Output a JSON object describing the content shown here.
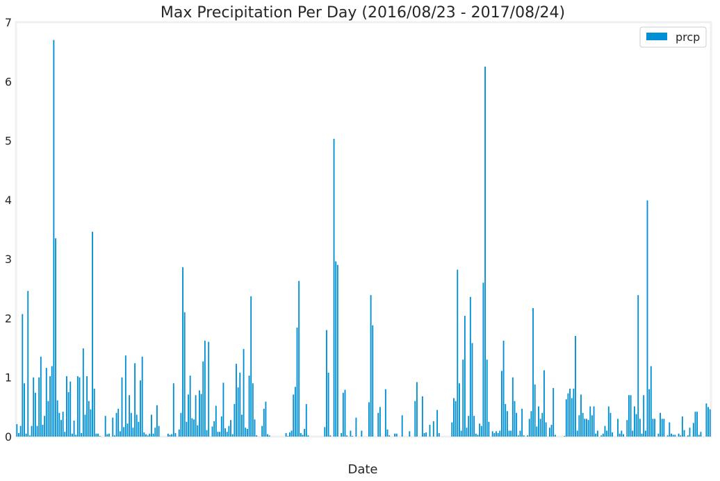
{
  "chart_data": {
    "type": "bar",
    "title": "Max Precipitation Per Day (2016/08/23 - 2017/08/24)",
    "xlabel": "Date",
    "ylabel": "",
    "ylim": [
      0,
      7
    ],
    "yticks": [
      "0",
      "1",
      "2",
      "3",
      "4",
      "5",
      "6",
      "7"
    ],
    "grid": false,
    "legend_position": "top-right",
    "bar_color": "#008fd5",
    "series": [
      {
        "name": "prcp",
        "values": [
          0.21,
          0.06,
          0.18,
          2.07,
          0.9,
          0.05,
          2.46,
          0.02,
          0.18,
          1.0,
          0.74,
          0.18,
          1.0,
          1.35,
          0.2,
          0.35,
          1.16,
          0.6,
          1.02,
          1.19,
          6.7,
          3.35,
          0.61,
          0.4,
          0.28,
          0.42,
          0.08,
          1.02,
          0.75,
          0.93,
          0.05,
          0.27,
          0.03,
          1.02,
          1.0,
          0.06,
          1.49,
          0.37,
          1.02,
          0.6,
          0.46,
          3.46,
          0.81,
          0.05,
          0.05,
          0.01,
          0.0,
          0.0,
          0.35,
          0.04,
          0.05,
          0.0,
          0.32,
          0.02,
          0.4,
          0.47,
          0.09,
          1.0,
          0.16,
          1.37,
          0.22,
          0.7,
          0.4,
          0.15,
          1.24,
          0.37,
          0.25,
          0.95,
          1.35,
          0.07,
          0.04,
          0.02,
          0.05,
          0.37,
          0.05,
          0.15,
          0.53,
          0.18,
          0.0,
          0.0,
          0.0,
          0.0,
          0.05,
          0.03,
          0.04,
          0.9,
          0.06,
          0.0,
          0.12,
          0.4,
          2.86,
          2.1,
          0.25,
          0.71,
          1.03,
          0.31,
          0.29,
          0.7,
          0.19,
          0.78,
          0.72,
          1.27,
          1.62,
          0.11,
          1.6,
          0.0,
          0.17,
          0.26,
          0.52,
          0.08,
          0.08,
          0.34,
          0.91,
          0.14,
          0.08,
          0.18,
          0.28,
          0.04,
          0.55,
          1.23,
          0.83,
          1.08,
          0.37,
          1.48,
          0.15,
          0.13,
          1.03,
          2.37,
          0.9,
          0.29,
          0.02,
          0.0,
          0.0,
          0.18,
          0.47,
          0.59,
          0.04,
          0.02,
          0.0,
          0.0,
          0.0,
          0.0,
          0.0,
          0.0,
          0.0,
          0.0,
          0.06,
          0.01,
          0.07,
          0.1,
          0.71,
          0.84,
          1.84,
          2.63,
          0.06,
          0.03,
          0.13,
          0.55,
          0.02,
          0.0,
          0.0,
          0.0,
          0.0,
          0.0,
          0.0,
          0.0,
          0.0,
          0.16,
          1.8,
          1.08,
          0.02,
          0.0,
          5.03,
          2.96,
          2.9,
          0.0,
          0.06,
          0.74,
          0.79,
          0.02,
          0.0,
          0.1,
          0.01,
          0.0,
          0.32,
          0.0,
          0.0,
          0.1,
          0.0,
          0.0,
          0.0,
          0.58,
          2.39,
          1.88,
          0.0,
          0.0,
          0.4,
          0.5,
          0.0,
          0.0,
          0.8,
          0.12,
          0.02,
          0.0,
          0.0,
          0.05,
          0.05,
          0.0,
          0.0,
          0.36,
          0.0,
          0.0,
          0.0,
          0.09,
          0.0,
          0.0,
          0.6,
          0.92,
          0.0,
          0.0,
          0.68,
          0.06,
          0.07,
          0.0,
          0.2,
          0.0,
          0.26,
          0.0,
          0.45,
          0.06,
          0.0,
          0.0,
          0.0,
          0.0,
          0.0,
          0.0,
          0.24,
          0.65,
          0.6,
          2.82,
          0.9,
          0.1,
          1.3,
          2.04,
          0.15,
          0.35,
          2.36,
          1.58,
          0.35,
          0.05,
          0.03,
          0.22,
          0.18,
          2.6,
          6.25,
          1.3,
          0.25,
          0.0,
          0.09,
          0.06,
          0.09,
          0.06,
          0.1,
          1.11,
          1.62,
          0.55,
          0.43,
          0.1,
          0.1,
          1.0,
          0.6,
          0.4,
          0.02,
          0.1,
          0.47,
          0.02,
          0.0,
          0.02,
          0.3,
          0.43,
          2.17,
          0.88,
          0.17,
          0.51,
          0.3,
          0.4,
          1.12,
          0.24,
          0.0,
          0.15,
          0.2,
          0.82,
          0.03,
          0.0,
          0.0,
          0.0,
          0.0,
          0.01,
          0.63,
          0.73,
          0.81,
          0.65,
          0.81,
          1.7,
          0.1,
          0.36,
          0.71,
          0.4,
          0.3,
          0.3,
          0.28,
          0.51,
          0.36,
          0.51,
          0.05,
          0.1,
          0.0,
          0.02,
          0.05,
          0.18,
          0.1,
          0.51,
          0.4,
          0.07,
          0.0,
          0.0,
          0.3,
          0.05,
          0.1,
          0.04,
          0.0,
          0.28,
          0.7,
          0.7,
          0.1,
          0.51,
          0.38,
          2.39,
          0.3,
          0.05,
          0.7,
          0.1,
          3.99,
          0.8,
          1.19,
          0.3,
          0.3,
          0.0,
          0.05,
          0.4,
          0.3,
          0.3,
          0.0,
          0.02,
          0.24,
          0.05,
          0.03,
          0.03,
          0.0,
          0.05,
          0.02,
          0.34,
          0.11,
          0.0,
          0.02,
          0.15,
          0.0,
          0.23,
          0.42,
          0.42,
          0.03,
          0.08,
          0.0,
          0.0,
          0.56,
          0.5,
          0.46
        ]
      }
    ]
  }
}
